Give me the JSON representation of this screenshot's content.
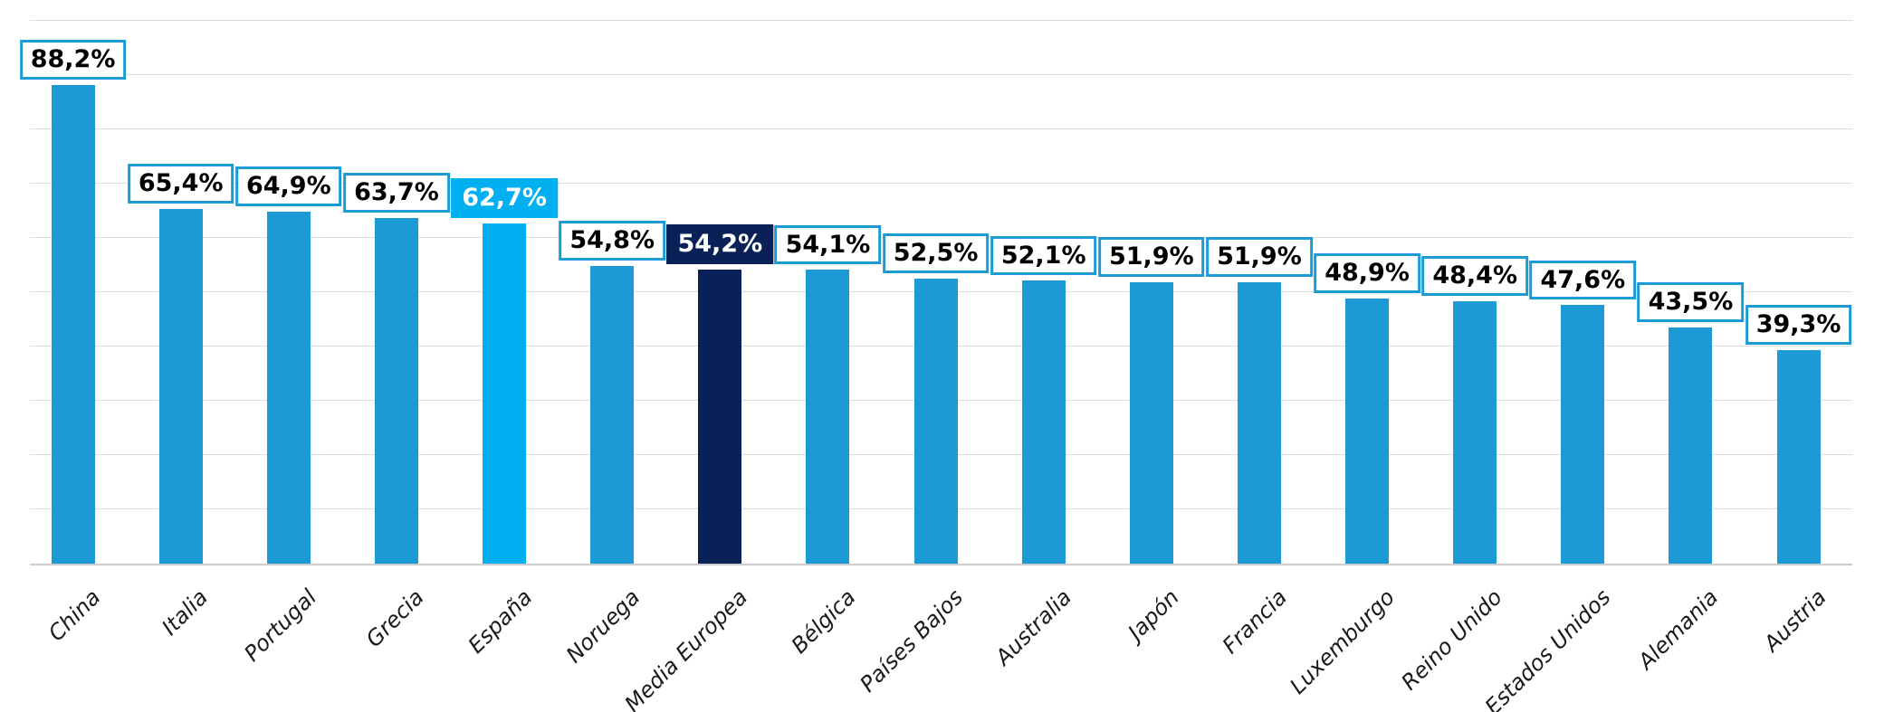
{
  "chart_data": {
    "type": "bar",
    "title": "",
    "xlabel": "",
    "ylabel": "",
    "ylim": [
      0,
      100
    ],
    "gridline_step_pct": 10,
    "grid": true,
    "legend": "none",
    "value_format": "comma-decimal-percent",
    "categories": [
      "China",
      "Italia",
      "Portugal",
      "Grecia",
      "España",
      "Noruega",
      "Media Europea",
      "Bélgica",
      "Países Bajos",
      "Australia",
      "Japón",
      "Francia",
      "Luxemburgo",
      "Reino Unido",
      "Estados Unidos",
      "Alemania",
      "Austria"
    ],
    "values": [
      88.2,
      65.4,
      64.9,
      63.7,
      62.7,
      54.8,
      54.2,
      54.1,
      52.5,
      52.1,
      51.9,
      51.9,
      48.9,
      48.4,
      47.6,
      43.5,
      39.3
    ],
    "value_labels": [
      "88,2%",
      "65,4%",
      "64,9%",
      "63,7%",
      "62,7%",
      "54,8%",
      "54,2%",
      "54,1%",
      "52,5%",
      "52,1%",
      "51,9%",
      "51,9%",
      "48,9%",
      "48,4%",
      "47,6%",
      "43,5%",
      "39,3%"
    ],
    "bar_styles": [
      "default",
      "default",
      "default",
      "default",
      "spain",
      "default",
      "media",
      "default",
      "default",
      "default",
      "default",
      "default",
      "default",
      "default",
      "default",
      "default",
      "default"
    ],
    "colors": {
      "bar_default": "#1C9AD6",
      "bar_spain": "#00B0F0",
      "bar_media": "#0A2158",
      "label_border": "#1C9AD6",
      "label_text": "#000000",
      "label_text_inverse": "#FFFFFF",
      "gridline": "#DEDEDE",
      "axis_line": "#CCCCCC",
      "category_text": "#1A1A1A"
    }
  }
}
